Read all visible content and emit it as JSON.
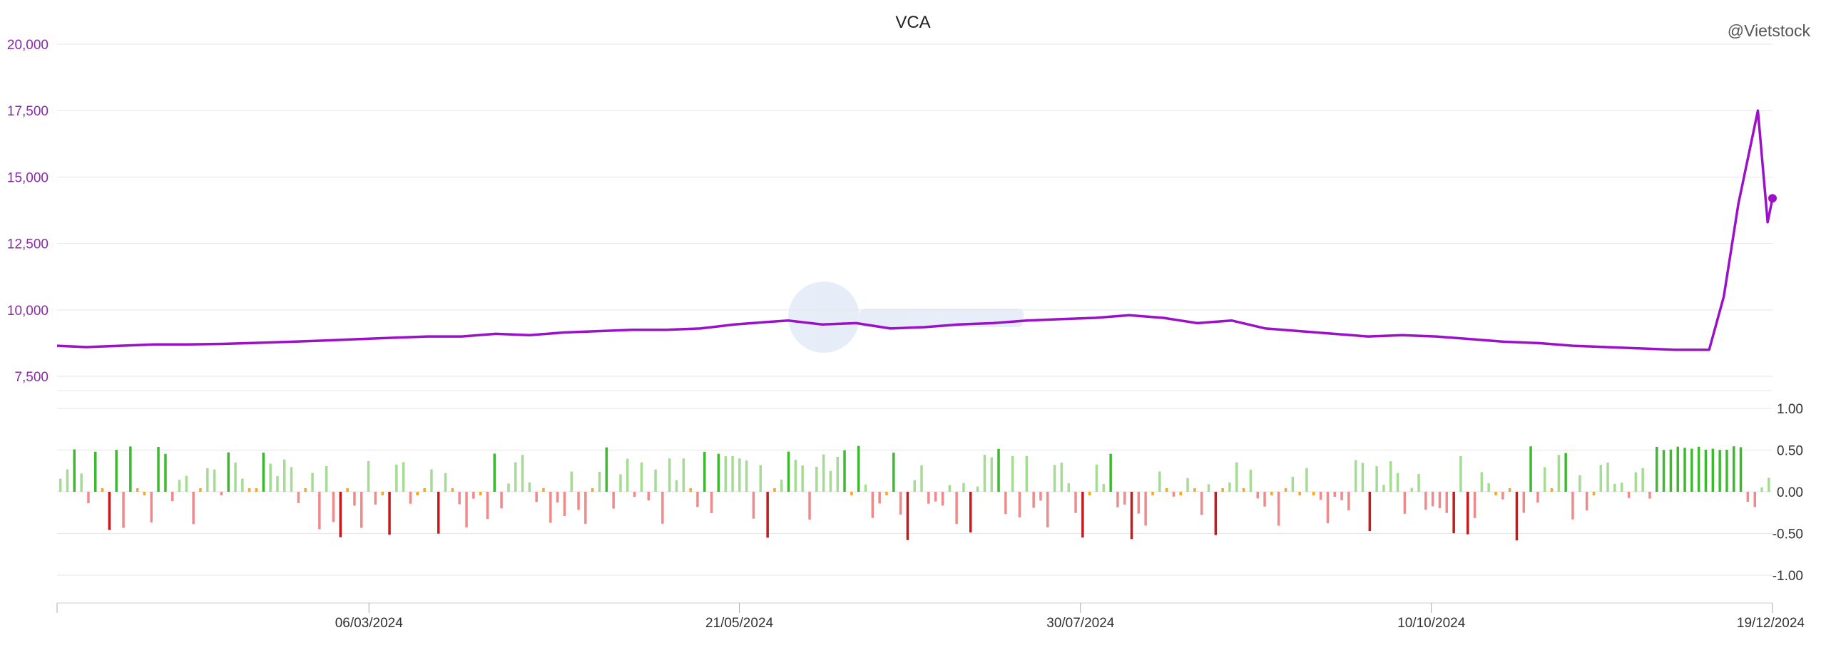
{
  "chart_data": {
    "type": "line",
    "title": "VCA",
    "credit": "@Vietstock",
    "colors": {
      "price_line": "#9b10c9",
      "price_axis_text": "#8a2aa8",
      "pct_axis_text": "#333333",
      "grid": "#e6e6e6",
      "up_light": "#a4dc94",
      "up_strong": "#3cba2e",
      "down_light": "#f08a8a",
      "down_strong": "#c81a1a",
      "flat": "#f5a623",
      "date_text": "#333333"
    },
    "price_panel": {
      "ylim": [
        7500,
        20000
      ],
      "yticks": [
        "20,000",
        "17,500",
        "15,000",
        "12,500",
        "10,000",
        "7,500"
      ],
      "ytick_values": [
        20000,
        17500,
        15000,
        12500,
        10000,
        7500
      ]
    },
    "change_panel": {
      "ylim": [
        -1.0,
        1.0
      ],
      "yticks": [
        "1.00",
        "0.50",
        "0.00",
        "-0.50",
        "-1.00"
      ],
      "ytick_values": [
        1.0,
        0.5,
        0.0,
        -0.5,
        -1.0
      ]
    },
    "x_ticks": [
      "06/03/2024",
      "21/05/2024",
      "30/07/2024",
      "10/10/2024",
      "19/12/2024"
    ],
    "x_start": "02/01/2024",
    "x_end": "19/12/2024",
    "price_series": {
      "name": "Price",
      "points": [
        [
          "02/01/2024",
          8650
        ],
        [
          "08/01/2024",
          8600
        ],
        [
          "15/01/2024",
          8650
        ],
        [
          "22/01/2024",
          8700
        ],
        [
          "29/01/2024",
          8700
        ],
        [
          "05/02/2024",
          8720
        ],
        [
          "19/02/2024",
          8800
        ],
        [
          "26/02/2024",
          8850
        ],
        [
          "04/03/2024",
          8900
        ],
        [
          "11/03/2024",
          8950
        ],
        [
          "18/03/2024",
          9000
        ],
        [
          "25/03/2024",
          9000
        ],
        [
          "01/04/2024",
          9100
        ],
        [
          "08/04/2024",
          9050
        ],
        [
          "15/04/2024",
          9150
        ],
        [
          "22/04/2024",
          9200
        ],
        [
          "29/04/2024",
          9250
        ],
        [
          "06/05/2024",
          9250
        ],
        [
          "13/05/2024",
          9300
        ],
        [
          "20/05/2024",
          9450
        ],
        [
          "27/05/2024",
          9550
        ],
        [
          "31/05/2024",
          9600
        ],
        [
          "07/06/2024",
          9450
        ],
        [
          "14/06/2024",
          9500
        ],
        [
          "21/06/2024",
          9300
        ],
        [
          "28/06/2024",
          9350
        ],
        [
          "05/07/2024",
          9450
        ],
        [
          "12/07/2024",
          9500
        ],
        [
          "19/07/2024",
          9600
        ],
        [
          "26/07/2024",
          9650
        ],
        [
          "02/08/2024",
          9700
        ],
        [
          "09/08/2024",
          9800
        ],
        [
          "16/08/2024",
          9700
        ],
        [
          "23/08/2024",
          9500
        ],
        [
          "30/08/2024",
          9600
        ],
        [
          "06/09/2024",
          9300
        ],
        [
          "13/09/2024",
          9200
        ],
        [
          "20/09/2024",
          9100
        ],
        [
          "27/09/2024",
          9000
        ],
        [
          "04/10/2024",
          9050
        ],
        [
          "11/10/2024",
          9000
        ],
        [
          "18/10/2024",
          8900
        ],
        [
          "25/10/2024",
          8800
        ],
        [
          "01/11/2024",
          8750
        ],
        [
          "08/11/2024",
          8650
        ],
        [
          "15/11/2024",
          8600
        ],
        [
          "22/11/2024",
          8550
        ],
        [
          "29/11/2024",
          8500
        ],
        [
          "06/12/2024",
          8500
        ],
        [
          "09/12/2024",
          10500
        ],
        [
          "12/12/2024",
          14000
        ],
        [
          "16/12/2024",
          17500
        ],
        [
          "18/12/2024",
          13300
        ],
        [
          "19/12/2024",
          14200
        ]
      ]
    }
  }
}
